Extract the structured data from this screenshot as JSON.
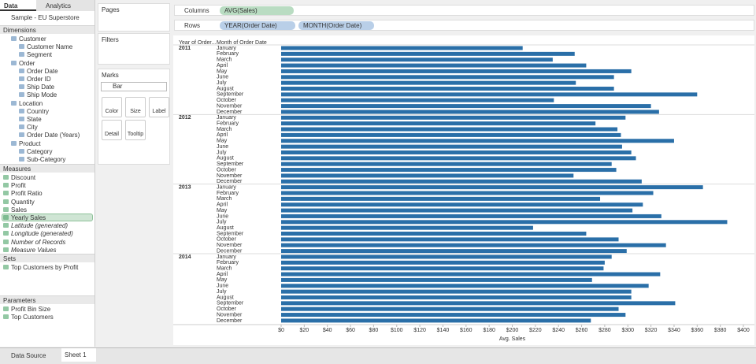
{
  "side_tabs": [
    "Data",
    "Analytics"
  ],
  "data_source": "Sample - EU Superstore",
  "dimensions": {
    "title": "Dimensions",
    "items": [
      {
        "label": "Customer",
        "kind": "folder"
      },
      {
        "label": "Customer Name",
        "kind": "field"
      },
      {
        "label": "Segment",
        "kind": "field"
      },
      {
        "label": "Order",
        "kind": "folder"
      },
      {
        "label": "Order Date",
        "kind": "field"
      },
      {
        "label": "Order ID",
        "kind": "field"
      },
      {
        "label": "Ship Date",
        "kind": "field"
      },
      {
        "label": "Ship Mode",
        "kind": "field"
      },
      {
        "label": "Location",
        "kind": "folder"
      },
      {
        "label": "Country",
        "kind": "field"
      },
      {
        "label": "State",
        "kind": "field"
      },
      {
        "label": "City",
        "kind": "field"
      },
      {
        "label": "Order Date (Years)",
        "kind": "field"
      },
      {
        "label": "Product",
        "kind": "folder"
      },
      {
        "label": "Category",
        "kind": "field"
      },
      {
        "label": "Sub-Category",
        "kind": "field"
      }
    ]
  },
  "measures": {
    "title": "Measures",
    "items": [
      {
        "label": "Discount"
      },
      {
        "label": "Profit"
      },
      {
        "label": "Profit Ratio"
      },
      {
        "label": "Quantity"
      },
      {
        "label": "Sales"
      },
      {
        "label": "Yearly Sales",
        "selected": true
      },
      {
        "label": "Latitude (generated)",
        "italic": true
      },
      {
        "label": "Longitude (generated)",
        "italic": true
      },
      {
        "label": "Number of Records",
        "italic": true
      },
      {
        "label": "Measure Values",
        "italic": true
      }
    ]
  },
  "sets": {
    "title": "Sets",
    "items": [
      {
        "label": "Top Customers by Profit"
      }
    ]
  },
  "parameters": {
    "title": "Parameters",
    "items": [
      {
        "label": "Profit Bin Size"
      },
      {
        "label": "Top Customers"
      }
    ]
  },
  "cards": {
    "pages": "Pages",
    "filters": "Filters",
    "marks": "Marks",
    "mark_type": "Bar",
    "buttons": [
      "Color",
      "Size",
      "Label",
      "Detail",
      "Tooltip"
    ]
  },
  "shelves": {
    "columns": {
      "label": "Columns",
      "pills": [
        "AVG(Sales)"
      ]
    },
    "rows": {
      "label": "Rows",
      "pills": [
        "YEAR(Order Date)",
        "MONTH(Order Date)"
      ]
    }
  },
  "bottom_tabs": [
    "Data Source",
    "Sheet 1"
  ],
  "chart_data": {
    "type": "bar",
    "orientation": "horizontal",
    "row_headers": [
      "Year of Order...",
      "Month of Order Date"
    ],
    "groups": [
      "2011",
      "2012",
      "2013",
      "2014"
    ],
    "categories": [
      "January",
      "February",
      "March",
      "April",
      "May",
      "June",
      "July",
      "August",
      "September",
      "October",
      "November",
      "December",
      "January",
      "February",
      "March",
      "April",
      "May",
      "June",
      "July",
      "August",
      "September",
      "October",
      "November",
      "December",
      "January",
      "February",
      "March",
      "April",
      "May",
      "June",
      "July",
      "August",
      "September",
      "October",
      "November",
      "December",
      "January",
      "February",
      "March",
      "April",
      "May",
      "June",
      "July",
      "August",
      "September",
      "October",
      "November",
      "December"
    ],
    "values": [
      209,
      254,
      235,
      264,
      303,
      288,
      255,
      288,
      360,
      236,
      320,
      327,
      298,
      272,
      291,
      294,
      340,
      295,
      303,
      307,
      286,
      290,
      253,
      312,
      365,
      322,
      276,
      313,
      304,
      329,
      386,
      218,
      264,
      292,
      333,
      299,
      286,
      280,
      279,
      328,
      269,
      318,
      303,
      303,
      341,
      292,
      298,
      268
    ],
    "color": "#2a6fa8",
    "xlabel": "Avg. Sales",
    "xlim": [
      0,
      400
    ],
    "xticks": [
      {
        "value": 0,
        "label": "$0"
      },
      {
        "value": 20,
        "label": "$20"
      },
      {
        "value": 40,
        "label": "$40"
      },
      {
        "value": 60,
        "label": "$60"
      },
      {
        "value": 80,
        "label": "$80"
      },
      {
        "value": 100,
        "label": "$100"
      },
      {
        "value": 120,
        "label": "$120"
      },
      {
        "value": 140,
        "label": "$140"
      },
      {
        "value": 160,
        "label": "$160"
      },
      {
        "value": 180,
        "label": "$180"
      },
      {
        "value": 200,
        "label": "$200"
      },
      {
        "value": 220,
        "label": "$220"
      },
      {
        "value": 240,
        "label": "$240"
      },
      {
        "value": 260,
        "label": "$260"
      },
      {
        "value": 280,
        "label": "$280"
      },
      {
        "value": 300,
        "label": "$300"
      },
      {
        "value": 320,
        "label": "$320"
      },
      {
        "value": 340,
        "label": "$340"
      },
      {
        "value": 360,
        "label": "$360"
      },
      {
        "value": 380,
        "label": "$380"
      },
      {
        "value": 400,
        "label": "$400"
      }
    ],
    "grid": false
  }
}
